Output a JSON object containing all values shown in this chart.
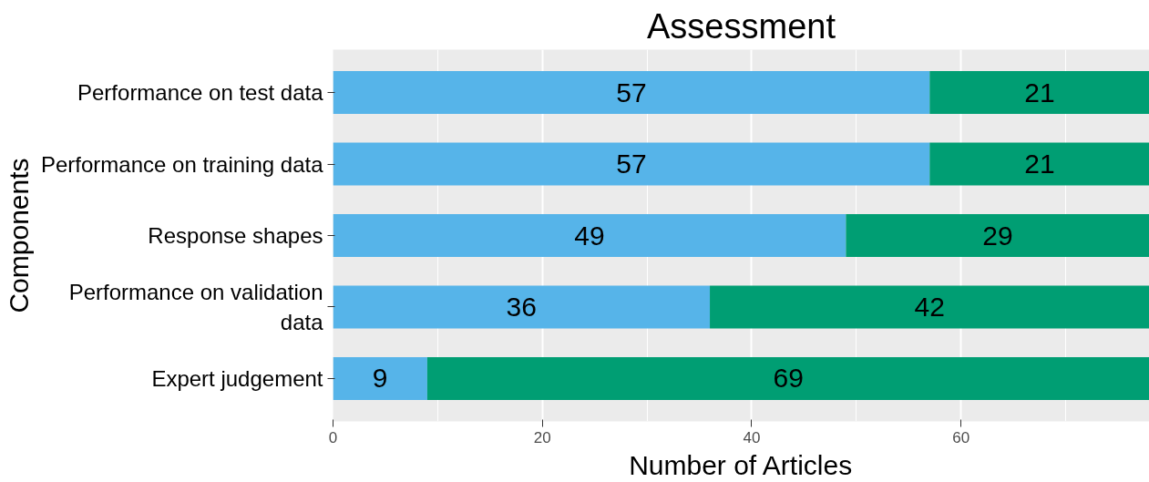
{
  "chart_data": {
    "type": "bar",
    "orientation": "horizontal",
    "stacked": true,
    "title": "Assessment",
    "xlabel": "Number of Articles",
    "ylabel": "Components",
    "categories": [
      "Performance on test data",
      "Performance on training data",
      "Response shapes",
      "Performance on validation data",
      "Expert judgement"
    ],
    "series": [
      {
        "color": "#56b4e9",
        "values": [
          57,
          57,
          49,
          36,
          9
        ]
      },
      {
        "color": "#009e73",
        "values": [
          21,
          21,
          29,
          42,
          69
        ]
      }
    ],
    "xlim": [
      0,
      78
    ],
    "xticks": [
      0,
      20,
      40,
      60
    ],
    "grid": "x",
    "data_labels": true
  }
}
